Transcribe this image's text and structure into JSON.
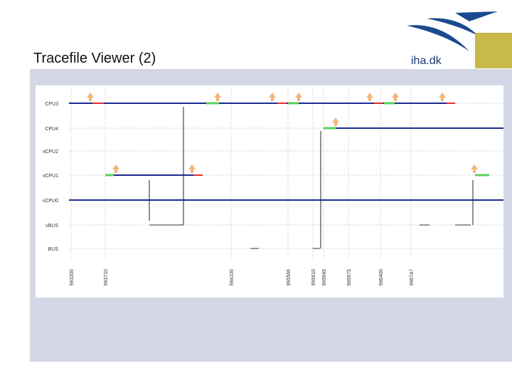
{
  "header": {
    "title": "Tracefile Viewer (2)",
    "logo_text": "iha.dk"
  },
  "trace": {
    "rows": [
      "CPU3",
      "CPU4",
      "vCPU2",
      "vCPU1",
      "vCPU0",
      "vBUS",
      "BUS"
    ],
    "time_labels": [
      "993200",
      "993710",
      "994100",
      "995566",
      "995610",
      "995645",
      "995675",
      "996400",
      "996747"
    ]
  }
}
